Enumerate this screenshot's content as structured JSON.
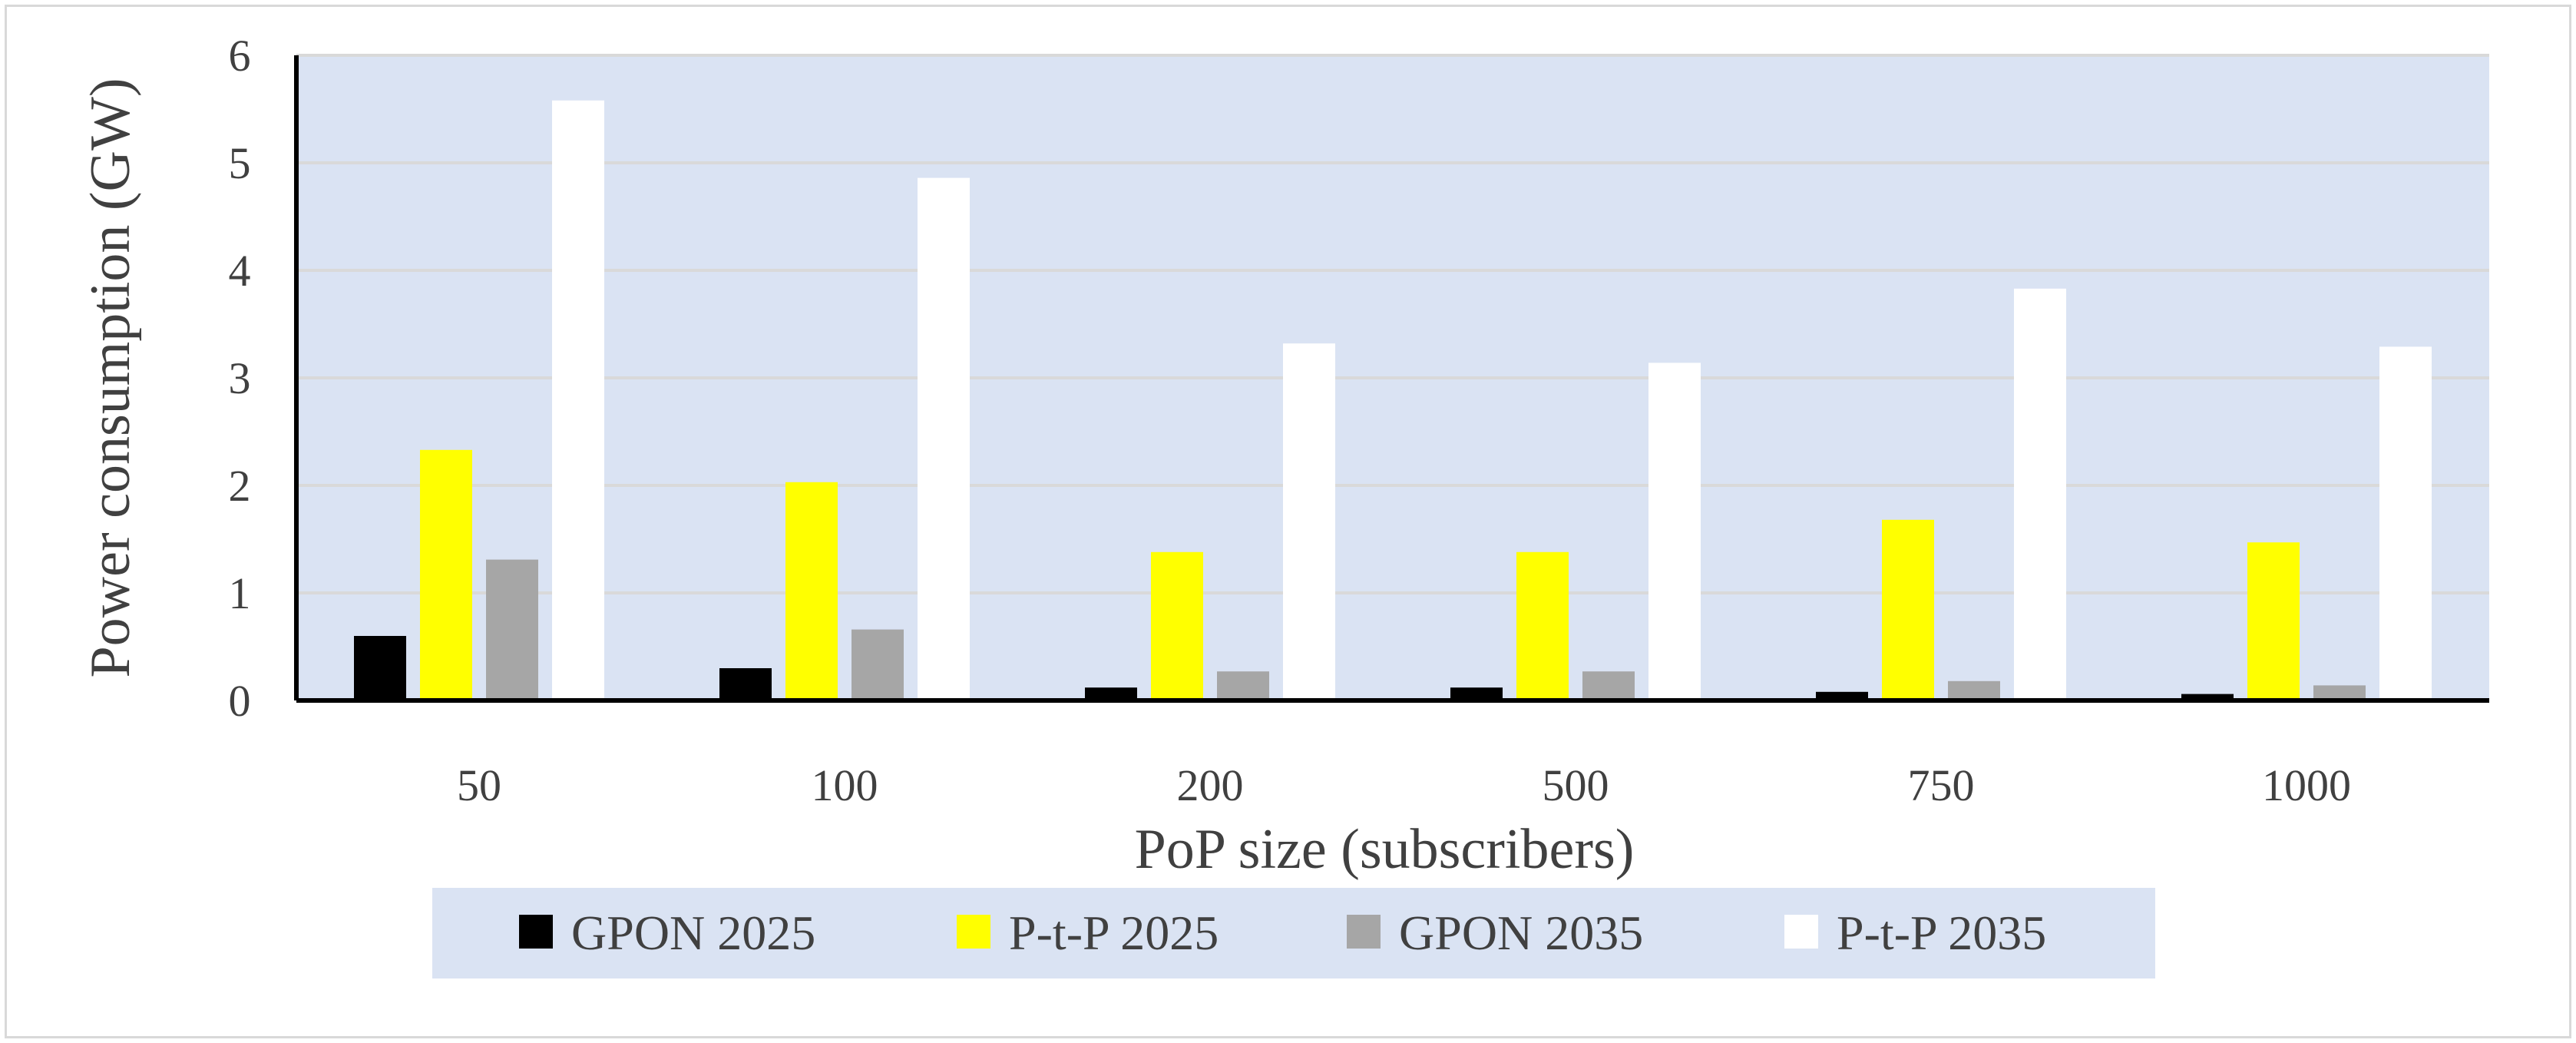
{
  "chart_data": {
    "type": "bar",
    "title": "",
    "xlabel": "PoP size (subscribers)",
    "ylabel": "Power consumption (GW)",
    "categories": [
      "50",
      "100",
      "200",
      "500",
      "750",
      "1000"
    ],
    "ylim": [
      0,
      6
    ],
    "yticks": [
      "0",
      "1",
      "2",
      "3",
      "4",
      "5",
      "6"
    ],
    "grid": true,
    "legend_position": "bottom",
    "series": [
      {
        "name": "GPON 2025",
        "color": "#000000",
        "values": [
          0.6,
          0.3,
          0.12,
          0.12,
          0.08,
          0.06
        ]
      },
      {
        "name": "P-t-P 2025",
        "color": "#ffff00",
        "values": [
          2.33,
          2.03,
          1.38,
          1.38,
          1.68,
          1.47
        ]
      },
      {
        "name": "GPON 2035",
        "color": "#a6a6a6",
        "values": [
          1.31,
          0.66,
          0.27,
          0.27,
          0.18,
          0.14
        ]
      },
      {
        "name": "P-t-P 2035",
        "color": "#ffffff",
        "values": [
          5.58,
          4.86,
          3.32,
          3.14,
          3.83,
          3.29
        ]
      }
    ],
    "plot_background": "#dae3f3",
    "legend_background": "#dae3f3"
  }
}
